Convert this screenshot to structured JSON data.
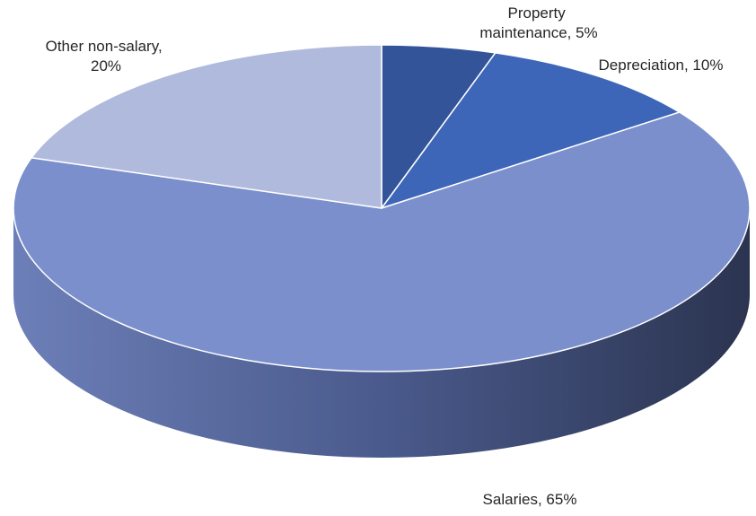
{
  "chart_data": {
    "type": "pie",
    "values": [
      5,
      10,
      65,
      20
    ],
    "value_labels": [
      "Property maintenance, 5%",
      "Depreciation, 10%",
      "Salaries, 65%",
      "Other non-salary, 20%"
    ],
    "colors": [
      "#34549a",
      "#3e66b8",
      "#7a8fcc",
      "#b0badd"
    ]
  }
}
